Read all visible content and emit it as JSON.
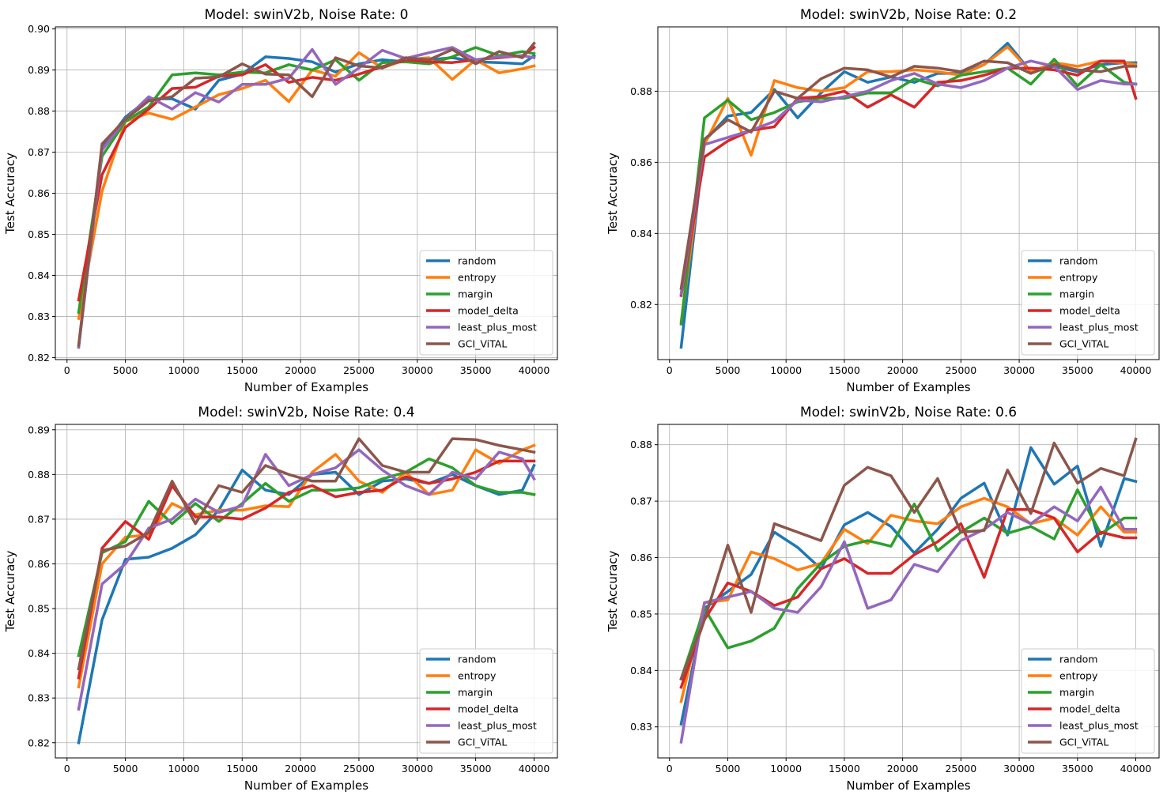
{
  "figure": {
    "xlabel": "Number of Examples",
    "ylabel": "Test Accuracy",
    "x_ticks": [
      "0",
      "5000",
      "10000",
      "15000",
      "20000",
      "25000",
      "30000",
      "35000",
      "40000"
    ],
    "colors": {
      "random": "#1f77b4",
      "entropy": "#ff7f0e",
      "margin": "#2ca02c",
      "model_delta": "#d62728",
      "least_plus_most": "#9467bd",
      "GCI_ViTAL": "#8c564b"
    },
    "legend_placement": "lower right"
  },
  "chart_data": [
    {
      "type": "line",
      "title": "Model: swinV2b, Noise Rate: 0",
      "xlabel": "Number of Examples",
      "ylabel": "Test Accuracy",
      "xlim": [
        -1000,
        42000
      ],
      "ylim": [
        0.8195,
        0.9005
      ],
      "y_ticks": [
        "0.82",
        "0.83",
        "0.84",
        "0.85",
        "0.86",
        "0.87",
        "0.88",
        "0.89",
        "0.90"
      ],
      "grid": true,
      "legend": "lower right",
      "x": [
        1000,
        3000,
        5000,
        7000,
        9000,
        11000,
        13000,
        15000,
        17000,
        19000,
        21000,
        23000,
        25000,
        27000,
        29000,
        31000,
        33000,
        35000,
        37000,
        39000,
        40000
      ],
      "series": [
        {
          "name": "random",
          "values": [
            0.8225,
            0.871,
            0.8785,
            0.883,
            0.883,
            0.8805,
            0.8875,
            0.889,
            0.8932,
            0.8928,
            0.892,
            0.8895,
            0.8915,
            0.8925,
            0.892,
            0.8925,
            0.893,
            0.892,
            0.8918,
            0.8915,
            0.8935
          ]
        },
        {
          "name": "entropy",
          "values": [
            0.8295,
            0.8605,
            0.8775,
            0.8795,
            0.878,
            0.881,
            0.884,
            0.8855,
            0.8875,
            0.8823,
            0.89,
            0.8885,
            0.8942,
            0.8905,
            0.8925,
            0.893,
            0.8877,
            0.8925,
            0.8893,
            0.8903,
            0.891
          ]
        },
        {
          "name": "margin",
          "values": [
            0.831,
            0.869,
            0.8775,
            0.881,
            0.8888,
            0.8893,
            0.8888,
            0.8895,
            0.8893,
            0.8913,
            0.89,
            0.8925,
            0.8875,
            0.8918,
            0.892,
            0.8915,
            0.8932,
            0.8955,
            0.8935,
            0.8945,
            0.894
          ]
        },
        {
          "name": "model_delta",
          "values": [
            0.834,
            0.8645,
            0.876,
            0.8805,
            0.8855,
            0.8858,
            0.8885,
            0.8888,
            0.8913,
            0.887,
            0.8882,
            0.8875,
            0.889,
            0.8908,
            0.8925,
            0.892,
            0.8918,
            0.8925,
            0.893,
            0.8935,
            0.8955
          ]
        },
        {
          "name": "least_plus_most",
          "values": [
            0.8225,
            0.8705,
            0.878,
            0.8835,
            0.8805,
            0.8845,
            0.8822,
            0.8865,
            0.8865,
            0.888,
            0.895,
            0.8865,
            0.8905,
            0.8948,
            0.8928,
            0.8942,
            0.8955,
            0.8925,
            0.8932,
            0.8935,
            0.893
          ]
        },
        {
          "name": "GCI_ViTAL",
          "values": [
            0.823,
            0.872,
            0.878,
            0.8825,
            0.8835,
            0.888,
            0.8883,
            0.8915,
            0.889,
            0.8888,
            0.8835,
            0.893,
            0.891,
            0.8905,
            0.893,
            0.8925,
            0.895,
            0.8915,
            0.8945,
            0.893,
            0.8965
          ]
        }
      ]
    },
    {
      "type": "line",
      "title": "Model: swinV2b, Noise Rate: 0.2",
      "xlabel": "Number of Examples",
      "ylabel": "Test Accuracy",
      "xlim": [
        -1000,
        42000
      ],
      "ylim": [
        0.8045,
        0.8981
      ],
      "y_ticks": [
        "0.82",
        "0.84",
        "0.86",
        "0.88"
      ],
      "grid": true,
      "legend": "lower right",
      "x": [
        1000,
        3000,
        5000,
        7000,
        9000,
        11000,
        13000,
        15000,
        17000,
        19000,
        21000,
        23000,
        25000,
        27000,
        29000,
        31000,
        33000,
        35000,
        37000,
        39000,
        40000
      ],
      "series": [
        {
          "name": "random",
          "values": [
            0.808,
            0.866,
            0.873,
            0.874,
            0.8805,
            0.8725,
            0.8795,
            0.8855,
            0.8825,
            0.884,
            0.8825,
            0.885,
            0.885,
            0.8875,
            0.8935,
            0.8855,
            0.887,
            0.8855,
            0.8875,
            0.888,
            0.888
          ]
        },
        {
          "name": "entropy",
          "values": [
            0.815,
            0.865,
            0.878,
            0.862,
            0.883,
            0.881,
            0.88,
            0.881,
            0.8855,
            0.8855,
            0.886,
            0.8855,
            0.8845,
            0.8875,
            0.8925,
            0.8855,
            0.888,
            0.887,
            0.8885,
            0.888,
            0.8875
          ]
        },
        {
          "name": "margin",
          "values": [
            0.8145,
            0.8725,
            0.8775,
            0.872,
            0.874,
            0.877,
            0.878,
            0.878,
            0.8795,
            0.8795,
            0.8835,
            0.8815,
            0.8845,
            0.8855,
            0.8865,
            0.882,
            0.889,
            0.8815,
            0.8875,
            0.8825,
            0.882
          ]
        },
        {
          "name": "model_delta",
          "values": [
            0.8225,
            0.8615,
            0.866,
            0.869,
            0.87,
            0.878,
            0.8785,
            0.88,
            0.8755,
            0.879,
            0.8755,
            0.8825,
            0.883,
            0.8845,
            0.8865,
            0.8865,
            0.886,
            0.8845,
            0.8885,
            0.8885,
            0.878
          ]
        },
        {
          "name": "least_plus_most",
          "values": [
            0.823,
            0.865,
            0.867,
            0.869,
            0.8715,
            0.8775,
            0.877,
            0.8785,
            0.88,
            0.883,
            0.885,
            0.882,
            0.881,
            0.883,
            0.8865,
            0.8885,
            0.887,
            0.8805,
            0.883,
            0.882,
            0.882
          ]
        },
        {
          "name": "GCI_ViTAL",
          "values": [
            0.8245,
            0.8665,
            0.872,
            0.8685,
            0.88,
            0.878,
            0.8835,
            0.8865,
            0.886,
            0.884,
            0.887,
            0.8865,
            0.8855,
            0.8885,
            0.888,
            0.885,
            0.8875,
            0.886,
            0.8855,
            0.887,
            0.887
          ]
        }
      ]
    },
    {
      "type": "line",
      "title": "Model: swinV2b, Noise Rate: 0.4",
      "xlabel": "Number of Examples",
      "ylabel": "Test Accuracy",
      "xlim": [
        -1000,
        42000
      ],
      "ylim": [
        0.8166,
        0.8912
      ],
      "y_ticks": [
        "0.82",
        "0.83",
        "0.84",
        "0.85",
        "0.86",
        "0.87",
        "0.88",
        "0.89"
      ],
      "grid": true,
      "legend": "lower right",
      "x": [
        1000,
        3000,
        5000,
        7000,
        9000,
        11000,
        13000,
        15000,
        17000,
        19000,
        21000,
        23000,
        25000,
        27000,
        29000,
        31000,
        33000,
        35000,
        37000,
        39000,
        40000
      ],
      "series": [
        {
          "name": "random",
          "values": [
            0.82,
            0.8475,
            0.861,
            0.8615,
            0.8635,
            0.8665,
            0.872,
            0.881,
            0.8765,
            0.8755,
            0.88,
            0.8805,
            0.8755,
            0.8785,
            0.879,
            0.878,
            0.88,
            0.8775,
            0.8755,
            0.8765,
            0.882
          ]
        },
        {
          "name": "entropy",
          "values": [
            0.8325,
            0.86,
            0.866,
            0.8665,
            0.8735,
            0.871,
            0.872,
            0.872,
            0.873,
            0.8728,
            0.8805,
            0.8845,
            0.8785,
            0.876,
            0.8805,
            0.8755,
            0.8765,
            0.8855,
            0.8825,
            0.8855,
            0.8865
          ]
        },
        {
          "name": "margin",
          "values": [
            0.8395,
            0.8625,
            0.865,
            0.874,
            0.869,
            0.8735,
            0.8695,
            0.8735,
            0.878,
            0.874,
            0.8765,
            0.8765,
            0.877,
            0.879,
            0.8805,
            0.8835,
            0.8815,
            0.8775,
            0.876,
            0.876,
            0.8755
          ]
        },
        {
          "name": "model_delta",
          "values": [
            0.8345,
            0.8635,
            0.8695,
            0.8655,
            0.8775,
            0.8705,
            0.8705,
            0.87,
            0.8725,
            0.876,
            0.8775,
            0.875,
            0.876,
            0.8765,
            0.8795,
            0.878,
            0.879,
            0.8805,
            0.883,
            0.883,
            0.883
          ]
        },
        {
          "name": "least_plus_most",
          "values": [
            0.8275,
            0.8555,
            0.86,
            0.868,
            0.87,
            0.8745,
            0.8715,
            0.873,
            0.8845,
            0.8775,
            0.88,
            0.8815,
            0.8855,
            0.881,
            0.8775,
            0.8755,
            0.8805,
            0.879,
            0.885,
            0.8835,
            0.879
          ]
        },
        {
          "name": "GCI_ViTAL",
          "values": [
            0.8365,
            0.863,
            0.864,
            0.867,
            0.8785,
            0.869,
            0.8775,
            0.876,
            0.882,
            0.88,
            0.8785,
            0.8785,
            0.888,
            0.882,
            0.8805,
            0.8805,
            0.888,
            0.8878,
            0.8865,
            0.8855,
            0.885
          ]
        }
      ]
    },
    {
      "type": "line",
      "title": "Model: swinV2b, Noise Rate: 0.6",
      "xlabel": "Number of Examples",
      "ylabel": "Test Accuracy",
      "xlim": [
        -1000,
        42000
      ],
      "ylim": [
        0.8245,
        0.8836
      ],
      "y_ticks": [
        "0.83",
        "0.84",
        "0.85",
        "0.86",
        "0.87",
        "0.88"
      ],
      "grid": true,
      "legend": "lower right",
      "x": [
        1000,
        3000,
        5000,
        7000,
        9000,
        11000,
        13000,
        15000,
        17000,
        19000,
        21000,
        23000,
        25000,
        27000,
        29000,
        31000,
        33000,
        35000,
        37000,
        39000,
        40000
      ],
      "series": [
        {
          "name": "random",
          "values": [
            0.8305,
            0.851,
            0.854,
            0.857,
            0.8645,
            0.8618,
            0.858,
            0.8658,
            0.868,
            0.8655,
            0.8608,
            0.865,
            0.8705,
            0.8732,
            0.864,
            0.8795,
            0.873,
            0.8762,
            0.862,
            0.874,
            0.8735
          ]
        },
        {
          "name": "entropy",
          "values": [
            0.8345,
            0.852,
            0.8525,
            0.861,
            0.8598,
            0.8578,
            0.859,
            0.865,
            0.8625,
            0.8675,
            0.8665,
            0.866,
            0.869,
            0.8705,
            0.869,
            0.866,
            0.867,
            0.864,
            0.869,
            0.8645,
            0.8645
          ]
        },
        {
          "name": "margin",
          "values": [
            0.8385,
            0.851,
            0.844,
            0.8452,
            0.8475,
            0.8545,
            0.859,
            0.862,
            0.863,
            0.862,
            0.8695,
            0.8612,
            0.8645,
            0.867,
            0.8643,
            0.8655,
            0.8633,
            0.872,
            0.8642,
            0.867,
            0.867
          ]
        },
        {
          "name": "model_delta",
          "values": [
            0.837,
            0.849,
            0.8555,
            0.854,
            0.8515,
            0.853,
            0.858,
            0.8598,
            0.8572,
            0.8572,
            0.8605,
            0.8628,
            0.866,
            0.8565,
            0.8685,
            0.8685,
            0.867,
            0.861,
            0.8645,
            0.8635,
            0.8635
          ]
        },
        {
          "name": "least_plus_most",
          "values": [
            0.8273,
            0.852,
            0.853,
            0.854,
            0.851,
            0.8503,
            0.8548,
            0.8628,
            0.851,
            0.8525,
            0.8588,
            0.8575,
            0.863,
            0.865,
            0.868,
            0.866,
            0.869,
            0.8665,
            0.8725,
            0.865,
            0.865
          ]
        },
        {
          "name": "GCI_ViTAL",
          "values": [
            0.8385,
            0.849,
            0.8622,
            0.8503,
            0.866,
            0.8645,
            0.863,
            0.8728,
            0.876,
            0.8745,
            0.868,
            0.874,
            0.8645,
            0.8648,
            0.8755,
            0.8678,
            0.8803,
            0.8732,
            0.8758,
            0.8745,
            0.881
          ]
        }
      ]
    }
  ]
}
